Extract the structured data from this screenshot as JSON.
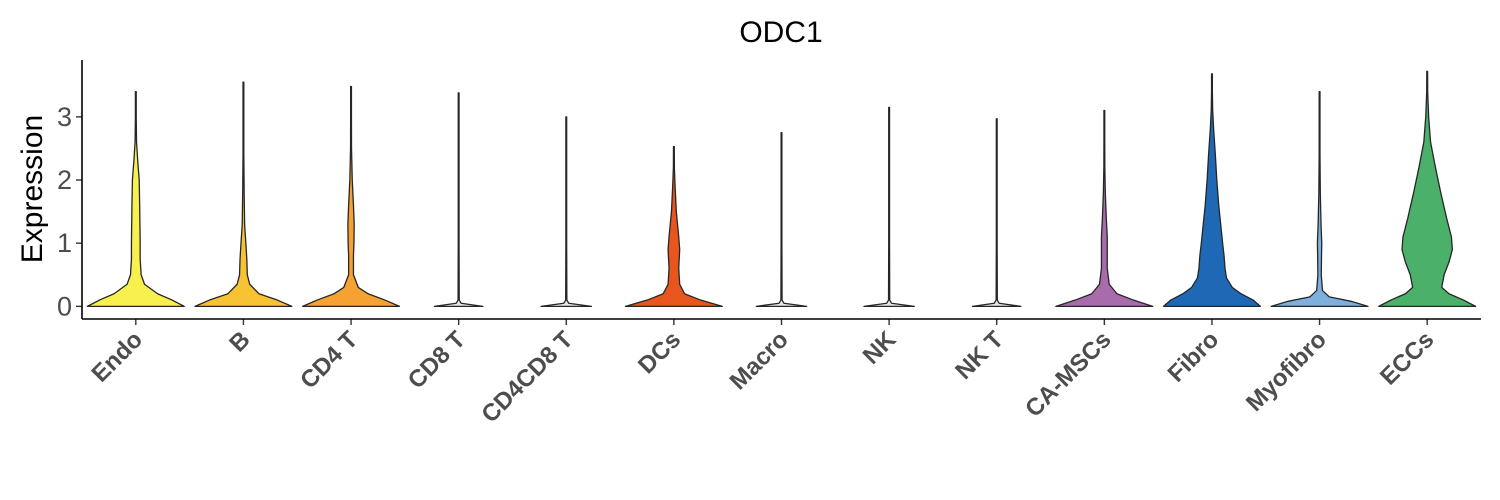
{
  "chart_data": {
    "type": "violin",
    "title": "ODC1",
    "xlabel": "",
    "ylabel": "Expression",
    "ylim": [
      -0.2,
      3.9
    ],
    "yticks": [
      0,
      1,
      2,
      3
    ],
    "grid": false,
    "legend": "none",
    "categories": [
      "Endo",
      "B",
      "CD4 T",
      "CD8 T",
      "CD4CD8 T",
      "DCs",
      "Macro",
      "NK",
      "NK T",
      "CA-MSCs",
      "Fibro",
      "Myofibro",
      "ECCs"
    ],
    "colors": [
      "#F7F04F",
      "#F7C333",
      "#F5A233",
      "#E6E6E6",
      "#E6E6E6",
      "#E8561E",
      "#E6E6E6",
      "#E6E6E6",
      "#E6E6E6",
      "#A86CAD",
      "#1E68B5",
      "#7EB0DD",
      "#4AB06A"
    ],
    "series": [
      {
        "max": 3.4,
        "profile": [
          [
            0,
            1.0
          ],
          [
            0.1,
            0.75
          ],
          [
            0.2,
            0.45
          ],
          [
            0.35,
            0.18
          ],
          [
            0.5,
            0.11
          ],
          [
            0.75,
            0.09
          ],
          [
            1.0,
            0.09
          ],
          [
            1.3,
            0.085
          ],
          [
            1.6,
            0.08
          ],
          [
            2.0,
            0.07
          ],
          [
            2.3,
            0.04
          ],
          [
            2.6,
            0.015
          ],
          [
            3.0,
            0.006
          ],
          [
            3.4,
            0.003
          ]
        ]
      },
      {
        "max": 3.55,
        "profile": [
          [
            0,
            1.0
          ],
          [
            0.1,
            0.7
          ],
          [
            0.2,
            0.32
          ],
          [
            0.35,
            0.13
          ],
          [
            0.5,
            0.08
          ],
          [
            0.75,
            0.07
          ],
          [
            1.0,
            0.05
          ],
          [
            1.3,
            0.025
          ],
          [
            1.8,
            0.015
          ],
          [
            2.4,
            0.008
          ],
          [
            3.0,
            0.004
          ],
          [
            3.55,
            0.002
          ]
        ]
      },
      {
        "max": 3.48,
        "profile": [
          [
            0,
            1.0
          ],
          [
            0.1,
            0.7
          ],
          [
            0.2,
            0.35
          ],
          [
            0.3,
            0.15
          ],
          [
            0.5,
            0.05
          ],
          [
            0.8,
            0.05
          ],
          [
            1.0,
            0.06
          ],
          [
            1.3,
            0.065
          ],
          [
            1.6,
            0.05
          ],
          [
            2.0,
            0.025
          ],
          [
            2.5,
            0.01
          ],
          [
            3.0,
            0.004
          ],
          [
            3.48,
            0.002
          ]
        ]
      },
      {
        "max": 3.38,
        "profile": [
          [
            0,
            0.5
          ],
          [
            0.05,
            0.05
          ],
          [
            0.1,
            0.012
          ],
          [
            1.0,
            0.006
          ],
          [
            2.0,
            0.006
          ],
          [
            3.38,
            0.004
          ]
        ]
      },
      {
        "max": 3.0,
        "profile": [
          [
            0,
            0.52
          ],
          [
            0.05,
            0.05
          ],
          [
            0.1,
            0.012
          ],
          [
            1.0,
            0.006
          ],
          [
            2.0,
            0.006
          ],
          [
            3.0,
            0.004
          ]
        ]
      },
      {
        "max": 2.53,
        "profile": [
          [
            0,
            1.0
          ],
          [
            0.1,
            0.55
          ],
          [
            0.2,
            0.22
          ],
          [
            0.35,
            0.12
          ],
          [
            0.6,
            0.1
          ],
          [
            0.9,
            0.12
          ],
          [
            1.1,
            0.1
          ],
          [
            1.5,
            0.05
          ],
          [
            1.9,
            0.025
          ],
          [
            2.2,
            0.01
          ],
          [
            2.53,
            0.004
          ]
        ]
      },
      {
        "max": 2.75,
        "profile": [
          [
            0,
            0.52
          ],
          [
            0.05,
            0.05
          ],
          [
            0.1,
            0.012
          ],
          [
            1.0,
            0.006
          ],
          [
            2.0,
            0.006
          ],
          [
            2.75,
            0.004
          ]
        ]
      },
      {
        "max": 3.15,
        "profile": [
          [
            0,
            0.52
          ],
          [
            0.05,
            0.05
          ],
          [
            0.1,
            0.012
          ],
          [
            1.0,
            0.006
          ],
          [
            2.0,
            0.006
          ],
          [
            3.15,
            0.004
          ]
        ]
      },
      {
        "max": 2.97,
        "profile": [
          [
            0,
            0.5
          ],
          [
            0.05,
            0.05
          ],
          [
            0.1,
            0.012
          ],
          [
            1.0,
            0.006
          ],
          [
            2.0,
            0.006
          ],
          [
            2.97,
            0.004
          ]
        ]
      },
      {
        "max": 3.1,
        "profile": [
          [
            0,
            1.0
          ],
          [
            0.1,
            0.6
          ],
          [
            0.2,
            0.26
          ],
          [
            0.35,
            0.1
          ],
          [
            0.6,
            0.06
          ],
          [
            0.9,
            0.06
          ],
          [
            1.1,
            0.06
          ],
          [
            1.4,
            0.04
          ],
          [
            1.8,
            0.02
          ],
          [
            2.2,
            0.01
          ],
          [
            2.6,
            0.005
          ],
          [
            3.1,
            0.002
          ]
        ]
      },
      {
        "max": 3.68,
        "profile": [
          [
            0,
            1.0
          ],
          [
            0.1,
            0.85
          ],
          [
            0.2,
            0.6
          ],
          [
            0.3,
            0.42
          ],
          [
            0.45,
            0.3
          ],
          [
            0.6,
            0.27
          ],
          [
            0.8,
            0.25
          ],
          [
            1.0,
            0.22
          ],
          [
            1.3,
            0.18
          ],
          [
            1.6,
            0.14
          ],
          [
            2.0,
            0.1
          ],
          [
            2.4,
            0.07
          ],
          [
            2.8,
            0.035
          ],
          [
            3.1,
            0.015
          ],
          [
            3.4,
            0.006
          ],
          [
            3.68,
            0.002
          ]
        ]
      },
      {
        "max": 3.4,
        "profile": [
          [
            0,
            1.0
          ],
          [
            0.08,
            0.65
          ],
          [
            0.15,
            0.2
          ],
          [
            0.25,
            0.06
          ],
          [
            0.5,
            0.035
          ],
          [
            0.8,
            0.04
          ],
          [
            1.0,
            0.045
          ],
          [
            1.3,
            0.03
          ],
          [
            1.8,
            0.015
          ],
          [
            2.4,
            0.007
          ],
          [
            3.0,
            0.004
          ],
          [
            3.4,
            0.002
          ]
        ]
      },
      {
        "max": 3.72,
        "profile": [
          [
            0,
            1.0
          ],
          [
            0.1,
            0.75
          ],
          [
            0.2,
            0.45
          ],
          [
            0.3,
            0.3
          ],
          [
            0.5,
            0.35
          ],
          [
            0.7,
            0.45
          ],
          [
            0.9,
            0.52
          ],
          [
            1.1,
            0.5
          ],
          [
            1.4,
            0.4
          ],
          [
            1.8,
            0.28
          ],
          [
            2.2,
            0.17
          ],
          [
            2.6,
            0.07
          ],
          [
            3.0,
            0.03
          ],
          [
            3.4,
            0.01
          ],
          [
            3.72,
            0.003
          ]
        ]
      }
    ]
  }
}
